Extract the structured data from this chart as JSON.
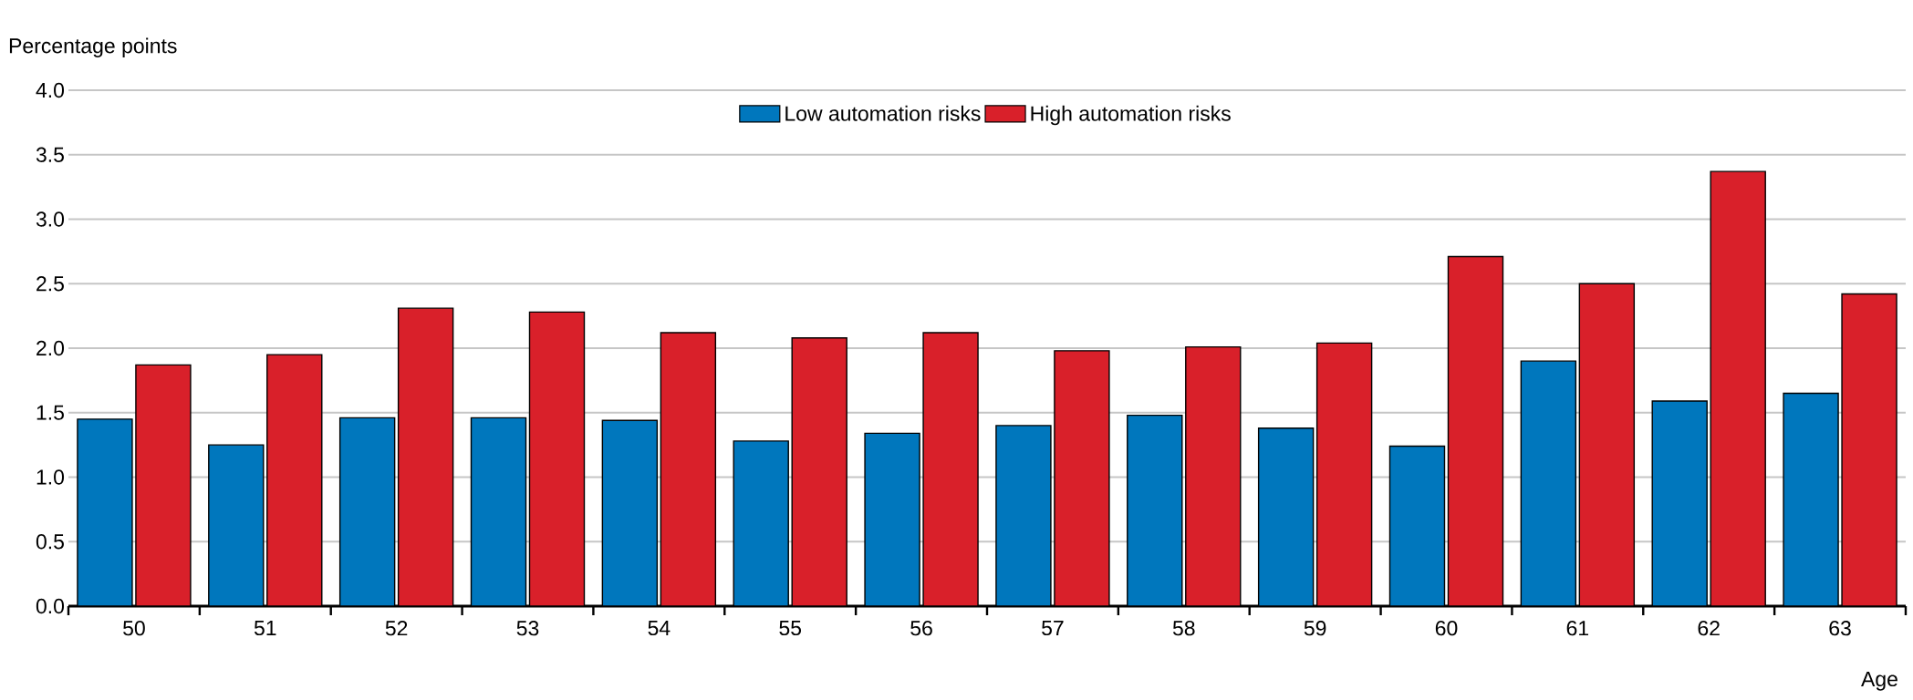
{
  "chart_data": {
    "type": "bar",
    "xlabel": "Age",
    "ylabel": "Percentage points",
    "categories": [
      "50",
      "51",
      "52",
      "53",
      "54",
      "55",
      "56",
      "57",
      "58",
      "59",
      "60",
      "61",
      "62",
      "63"
    ],
    "series": [
      {
        "name": "Low automation risks",
        "color": "#0077bd",
        "values": [
          1.45,
          1.25,
          1.46,
          1.46,
          1.44,
          1.28,
          1.34,
          1.4,
          1.48,
          1.38,
          1.24,
          1.9,
          1.59,
          1.65
        ]
      },
      {
        "name": "High automation risks",
        "color": "#d9202a",
        "values": [
          1.87,
          1.95,
          2.31,
          2.28,
          2.12,
          2.08,
          2.12,
          1.98,
          2.01,
          2.04,
          2.71,
          2.5,
          3.37,
          2.42
        ]
      }
    ],
    "ylim": [
      0,
      4
    ],
    "yticks": [
      {
        "value": 0,
        "label": "0.0"
      },
      {
        "value": 0.5,
        "label": "0.5"
      },
      {
        "value": 1,
        "label": "1.0"
      },
      {
        "value": 1.5,
        "label": "1.5"
      },
      {
        "value": 2,
        "label": "2.0"
      },
      {
        "value": 2.5,
        "label": "2.5"
      },
      {
        "value": 3,
        "label": "3.0"
      },
      {
        "value": 3.5,
        "label": "3.5"
      },
      {
        "value": 4,
        "label": "4.0"
      }
    ],
    "grid": "y",
    "legend": "top"
  }
}
